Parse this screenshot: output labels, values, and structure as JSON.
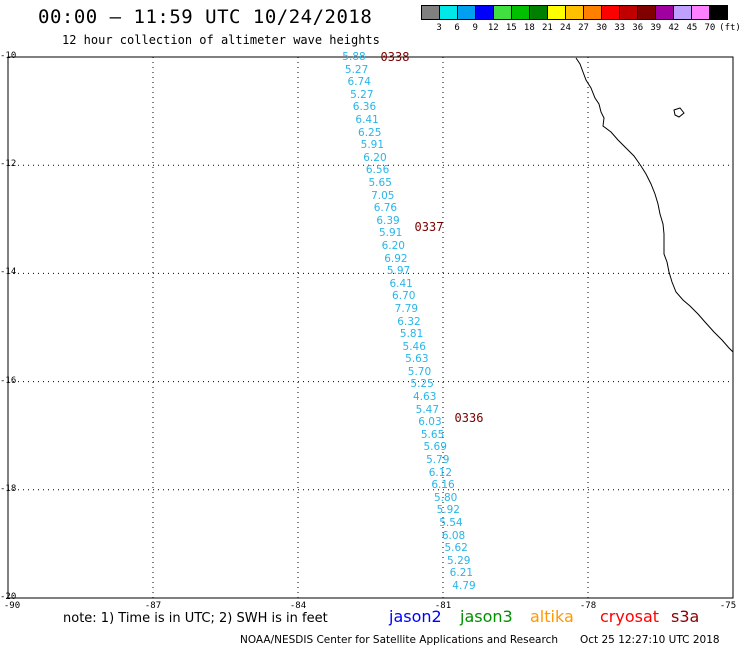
{
  "header": {
    "title": "00:00 — 11:59 UTC 10/24/2018",
    "subtitle": "12 hour collection of altimeter wave heights"
  },
  "color_scale": {
    "values": [
      "3",
      "6",
      "9",
      "12",
      "15",
      "18",
      "21",
      "24",
      "27",
      "30",
      "33",
      "36",
      "39",
      "42",
      "45",
      "70"
    ],
    "unit": "(ft)",
    "colors": [
      "#808080",
      "#00e8e8",
      "#00a0f0",
      "#0000ff",
      "#40e040",
      "#00c000",
      "#008000",
      "#ffff00",
      "#ffc000",
      "#ff8000",
      "#ff0000",
      "#c00000",
      "#800000",
      "#a000a0",
      "#c0a0ff",
      "#ff80ff",
      "#000000"
    ]
  },
  "axes": {
    "lat_labels": [
      "-10",
      "-12",
      "-14",
      "-16",
      "-18",
      "-20"
    ],
    "lon_labels": [
      "-90",
      "-87",
      "-84",
      "-81",
      "-78",
      "-75"
    ]
  },
  "track": {
    "color": "#29b5e8",
    "swh_values": [
      "5.88",
      "5.27",
      "6.74",
      "5.27",
      "6.36",
      "6.41",
      "6.25",
      "5.91",
      "6.20",
      "6.56",
      "5.65",
      "7.05",
      "6.76",
      "6.39",
      "5.91",
      "6.20",
      "6.92",
      "5.97",
      "6.41",
      "6.70",
      "7.79",
      "6.32",
      "5.81",
      "5.46",
      "5.63",
      "5.70",
      "5.25",
      "4.63",
      "5.47",
      "6.03",
      "5.65",
      "5.69",
      "5.79",
      "6.12",
      "6.16",
      "5.80",
      "5.92",
      "5.54",
      "6.08",
      "5.62",
      "5.29",
      "6.21",
      "4.79"
    ],
    "pass_times": [
      "0338",
      "0337",
      "0336"
    ],
    "pass_color": "#7a0000"
  },
  "footer": {
    "note": "note: 1) Time is in UTC; 2) SWH is in feet",
    "satellites": [
      {
        "name": "jason2",
        "color": "#0000ff"
      },
      {
        "name": "jason3",
        "color": "#009000"
      },
      {
        "name": "altika",
        "color": "#ff9900"
      },
      {
        "name": "cryosat",
        "color": "#ff0000"
      },
      {
        "name": "s3a",
        "color": "#8b0000"
      }
    ],
    "credit": "NOAA/NESDIS Center for Satellite Applications and Research",
    "timestamp": "Oct 25 12:27:10 UTC 2018"
  }
}
